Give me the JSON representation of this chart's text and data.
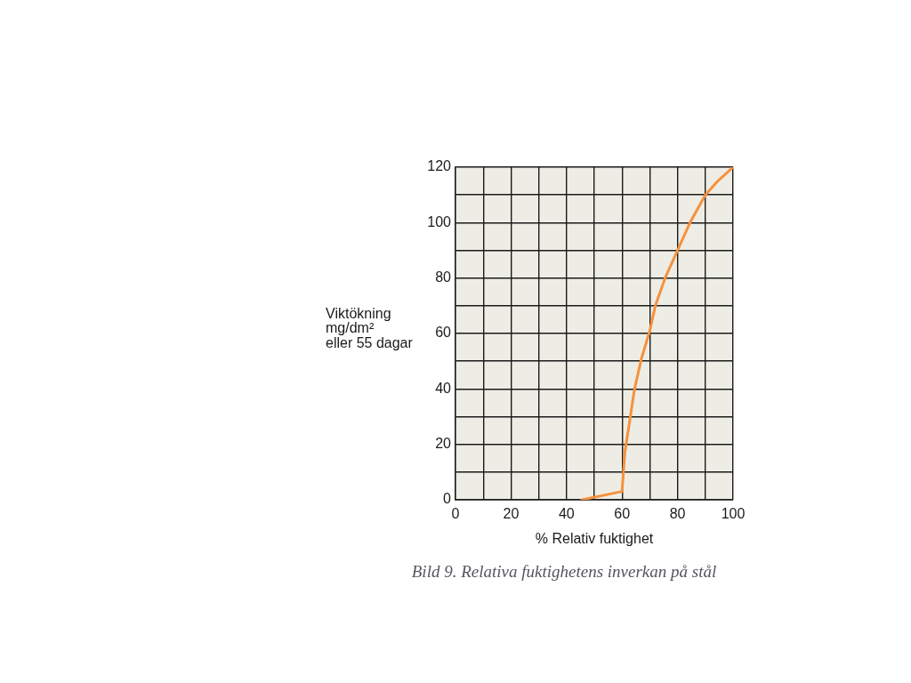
{
  "chart_data": {
    "type": "line",
    "ylabel": "Viktökning\nmg/dm²\neller 55 dagar",
    "xlabel": "% Relativ fuktighet",
    "annotations": [
      "Bild 9. Relativa fuktighetens inverkan på stål"
    ],
    "x": [
      45.5,
      60,
      61,
      63,
      64.5,
      67,
      70,
      72,
      75.5,
      80,
      84.5,
      90,
      94.5,
      100
    ],
    "values": [
      0,
      3,
      17,
      30,
      40,
      51,
      61,
      70,
      80,
      90,
      100,
      110,
      115,
      120
    ],
    "color": "#f7913d",
    "xlim": [
      0,
      100
    ],
    "ylim": [
      0,
      120
    ],
    "xticks": [
      0,
      {
        "value": 10,
        "label": null
      },
      20,
      {
        "value": 30,
        "label": null
      },
      40,
      {
        "value": 50,
        "label": null
      },
      60,
      {
        "value": 70,
        "label": null
      },
      80,
      {
        "value": 90,
        "label": null
      },
      100
    ],
    "yticks": [
      0,
      {
        "value": 10,
        "label": null
      },
      20,
      {
        "value": 30,
        "label": null
      },
      40,
      {
        "value": 50,
        "label": null
      },
      60,
      {
        "value": 70,
        "label": null
      },
      80,
      {
        "value": 90,
        "label": null
      },
      100,
      {
        "value": 110,
        "label": null
      },
      120
    ],
    "grid": true,
    "marker": "none",
    "line_style": "solid"
  }
}
